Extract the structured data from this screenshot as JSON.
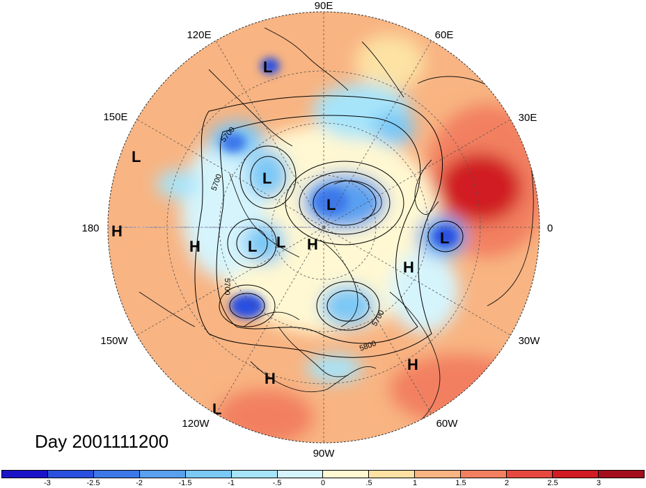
{
  "map": {
    "projection": "north-polar-stereographic",
    "longitude_labels": [
      "90E",
      "60E",
      "30E",
      "0",
      "30W",
      "60W",
      "90W",
      "120W",
      "150W",
      "180",
      "150E",
      "120E"
    ],
    "contour_labels": [
      "5700",
      "5700",
      "5700",
      "5700",
      "5800"
    ],
    "pressure_centers": [
      {
        "type": "L",
        "region": "east-siberia"
      },
      {
        "type": "L",
        "region": "bering-sea"
      },
      {
        "type": "L",
        "region": "kara-sea"
      },
      {
        "type": "L",
        "region": "alaska"
      },
      {
        "type": "L",
        "region": "canadian-arctic"
      },
      {
        "type": "L",
        "region": "western-europe"
      },
      {
        "type": "L",
        "region": "north-pacific"
      },
      {
        "type": "H",
        "region": "central-pacific"
      },
      {
        "type": "H",
        "region": "north-pacific-east"
      },
      {
        "type": "H",
        "region": "greenland"
      },
      {
        "type": "H",
        "region": "north-atlantic"
      },
      {
        "type": "H",
        "region": "subtropical-atlantic"
      },
      {
        "type": "H",
        "region": "eastern-pacific"
      }
    ]
  },
  "title": "Day 2001111200",
  "colorbar": {
    "colors": [
      "#1a14c8",
      "#2a50e0",
      "#3c78ea",
      "#5aa0f0",
      "#7ac8f6",
      "#a6e4fa",
      "#d6f4fc",
      "#fff8d2",
      "#fde2a4",
      "#f8b482",
      "#f28060",
      "#e64840",
      "#d01c22",
      "#a40e1c"
    ],
    "ticks": [
      "-3",
      "-2.5",
      "-2",
      "-1.5",
      "-1",
      "-.5",
      "0",
      ".5",
      "1",
      "1.5",
      "2",
      "2.5",
      "3"
    ]
  }
}
